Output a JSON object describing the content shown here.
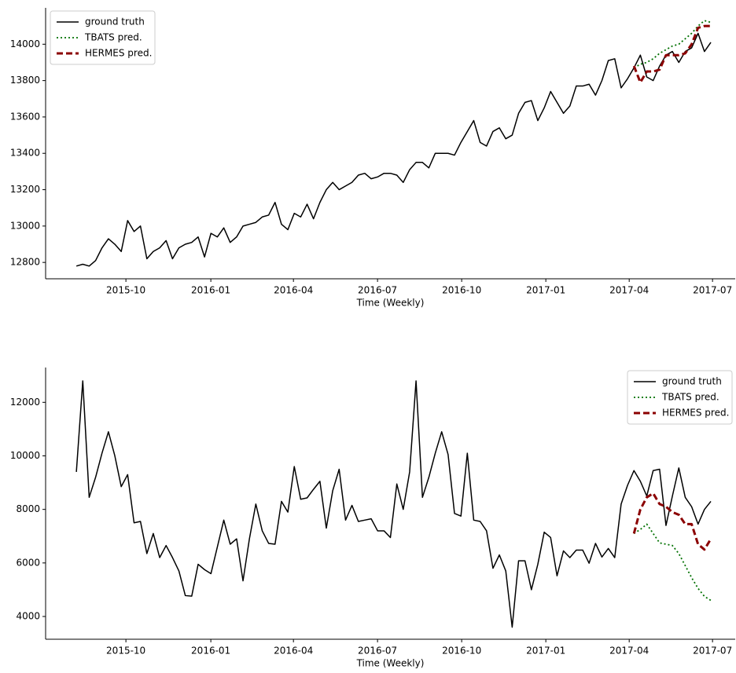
{
  "chart_data": [
    {
      "type": "line",
      "xlabel": "Time (Weekly)",
      "legend": "upper left",
      "x": [
        0,
        1,
        2,
        3,
        4,
        5,
        6,
        7,
        8,
        9,
        10,
        11,
        12,
        13,
        14,
        15,
        16,
        17,
        18,
        19,
        20,
        21,
        22,
        23,
        24,
        25,
        26,
        27,
        28,
        29,
        30,
        31,
        32,
        33,
        34,
        35,
        36,
        37,
        38,
        39,
        40,
        41,
        42,
        43,
        44,
        45,
        46,
        47,
        48,
        49,
        50,
        51,
        52,
        53,
        54,
        55,
        56,
        57,
        58,
        59,
        60,
        61,
        62,
        63,
        64,
        65,
        66,
        67,
        68,
        69,
        70,
        71,
        72,
        73,
        74,
        75,
        76,
        77,
        78,
        79,
        80,
        81,
        82,
        83,
        84,
        85,
        86,
        87,
        88,
        89,
        90,
        91,
        92,
        93,
        94,
        95,
        96,
        97,
        98,
        99
      ],
      "xlim": [
        -4.8,
        102.8
      ],
      "xticks": [
        {
          "value": 7.73,
          "label": "2015-10"
        },
        {
          "value": 20.98,
          "label": "2016-01"
        },
        {
          "value": 33.87,
          "label": "2016-04"
        },
        {
          "value": 46.99,
          "label": "2016-07"
        },
        {
          "value": 60.12,
          "label": "2016-10"
        },
        {
          "value": 73.25,
          "label": "2017-01"
        },
        {
          "value": 86.26,
          "label": "2017-04"
        },
        {
          "value": 99.26,
          "label": "2017-07"
        }
      ],
      "ylim": [
        12710,
        14200
      ],
      "yticks": [
        12800,
        13000,
        13200,
        13400,
        13600,
        13800,
        14000
      ],
      "series": [
        {
          "name": "ground truth",
          "color": "#000000",
          "style": "solid",
          "values": [
            12780,
            12790,
            12780,
            12810,
            12880,
            12930,
            12900,
            12860,
            13030,
            12970,
            13000,
            12820,
            12860,
            12880,
            12920,
            12820,
            12880,
            12900,
            12910,
            12940,
            12830,
            12960,
            12940,
            12990,
            12910,
            12940,
            13000,
            13010,
            13020,
            13050,
            13060,
            13130,
            13010,
            12980,
            13070,
            13050,
            13120,
            13040,
            13130,
            13200,
            13240,
            13200,
            13220,
            13240,
            13280,
            13290,
            13260,
            13270,
            13290,
            13290,
            13280,
            13240,
            13310,
            13350,
            13350,
            13320,
            13400,
            13400,
            13400,
            13390,
            13460,
            13520,
            13580,
            13460,
            13440,
            13520,
            13540,
            13480,
            13500,
            13620,
            13680,
            13690,
            13580,
            13650,
            13740,
            13680,
            13620,
            13660,
            13770,
            13770,
            13780,
            13720,
            13800,
            13910,
            13920,
            13760,
            13810,
            13870,
            13940,
            13820,
            13800,
            13880,
            13940,
            13960,
            13900,
            13960,
            13980,
            14060,
            13960,
            14010
          ]
        },
        {
          "name": "TBATS pred.",
          "color": "#007000",
          "style": "dotted",
          "values": [
            null,
            null,
            null,
            null,
            null,
            null,
            null,
            null,
            null,
            null,
            null,
            null,
            null,
            null,
            null,
            null,
            null,
            null,
            null,
            null,
            null,
            null,
            null,
            null,
            null,
            null,
            null,
            null,
            null,
            null,
            null,
            null,
            null,
            null,
            null,
            null,
            null,
            null,
            null,
            null,
            null,
            null,
            null,
            null,
            null,
            null,
            null,
            null,
            null,
            null,
            null,
            null,
            null,
            null,
            null,
            null,
            null,
            null,
            null,
            null,
            null,
            null,
            null,
            null,
            null,
            null,
            null,
            null,
            null,
            null,
            null,
            null,
            null,
            null,
            null,
            null,
            null,
            null,
            null,
            null,
            null,
            null,
            null,
            null,
            null,
            null,
            null,
            13870,
            13890,
            13900,
            13920,
            13950,
            13970,
            13990,
            14000,
            14030,
            14060,
            14100,
            14130,
            14120
          ]
        },
        {
          "name": "HERMES pred.",
          "color": "#8b0000",
          "style": "dashed",
          "values": [
            null,
            null,
            null,
            null,
            null,
            null,
            null,
            null,
            null,
            null,
            null,
            null,
            null,
            null,
            null,
            null,
            null,
            null,
            null,
            null,
            null,
            null,
            null,
            null,
            null,
            null,
            null,
            null,
            null,
            null,
            null,
            null,
            null,
            null,
            null,
            null,
            null,
            null,
            null,
            null,
            null,
            null,
            null,
            null,
            null,
            null,
            null,
            null,
            null,
            null,
            null,
            null,
            null,
            null,
            null,
            null,
            null,
            null,
            null,
            null,
            null,
            null,
            null,
            null,
            null,
            null,
            null,
            null,
            null,
            null,
            null,
            null,
            null,
            null,
            null,
            null,
            null,
            null,
            null,
            null,
            null,
            null,
            null,
            null,
            null,
            null,
            null,
            13880,
            13790,
            13850,
            13850,
            13860,
            13940,
            13940,
            13940,
            13950,
            14000,
            14090,
            14100,
            14100
          ]
        }
      ]
    },
    {
      "type": "line",
      "xlabel": "Time (Weekly)",
      "legend": "upper right",
      "x": [
        0,
        1,
        2,
        3,
        4,
        5,
        6,
        7,
        8,
        9,
        10,
        11,
        12,
        13,
        14,
        15,
        16,
        17,
        18,
        19,
        20,
        21,
        22,
        23,
        24,
        25,
        26,
        27,
        28,
        29,
        30,
        31,
        32,
        33,
        34,
        35,
        36,
        37,
        38,
        39,
        40,
        41,
        42,
        43,
        44,
        45,
        46,
        47,
        48,
        49,
        50,
        51,
        52,
        53,
        54,
        55,
        56,
        57,
        58,
        59,
        60,
        61,
        62,
        63,
        64,
        65,
        66,
        67,
        68,
        69,
        70,
        71,
        72,
        73,
        74,
        75,
        76,
        77,
        78,
        79,
        80,
        81,
        82,
        83,
        84,
        85,
        86,
        87,
        88,
        89,
        90,
        91,
        92,
        93,
        94,
        95,
        96,
        97,
        98,
        99
      ],
      "xlim": [
        -4.8,
        102.8
      ],
      "xticks": [
        {
          "value": 7.73,
          "label": "2015-10"
        },
        {
          "value": 20.98,
          "label": "2016-01"
        },
        {
          "value": 33.87,
          "label": "2016-04"
        },
        {
          "value": 46.99,
          "label": "2016-07"
        },
        {
          "value": 60.12,
          "label": "2016-10"
        },
        {
          "value": 73.25,
          "label": "2017-01"
        },
        {
          "value": 86.26,
          "label": "2017-04"
        },
        {
          "value": 99.26,
          "label": "2017-07"
        }
      ],
      "ylim": [
        3150,
        13300
      ],
      "yticks": [
        4000,
        6000,
        8000,
        10000,
        12000
      ],
      "series": [
        {
          "name": "ground truth",
          "color": "#000000",
          "style": "solid",
          "values": [
            9400,
            12800,
            8450,
            9200,
            10100,
            10900,
            10000,
            8850,
            9300,
            7500,
            7550,
            6350,
            7100,
            6200,
            6650,
            6200,
            5700,
            4780,
            4760,
            5950,
            5750,
            5600,
            6600,
            7600,
            6700,
            6900,
            5330,
            6900,
            8200,
            7200,
            6730,
            6700,
            8300,
            7900,
            9600,
            8380,
            8430,
            8750,
            9050,
            7300,
            8700,
            9500,
            7600,
            8150,
            7550,
            7600,
            7650,
            7200,
            7200,
            6950,
            8950,
            8000,
            9400,
            12800,
            8450,
            9200,
            10100,
            10900,
            10050,
            7850,
            7750,
            10100,
            7600,
            7550,
            7200,
            5800,
            6300,
            5700,
            3600,
            6080,
            6080,
            5000,
            5950,
            7150,
            6950,
            5520,
            6450,
            6200,
            6480,
            6480,
            5990,
            6730,
            6220,
            6540,
            6200,
            8200,
            8900,
            9450,
            9050,
            8500,
            9450,
            9500,
            7400,
            8500,
            9550,
            8450,
            8100,
            7450,
            8000,
            8300
          ]
        },
        {
          "name": "TBATS pred.",
          "color": "#007000",
          "style": "dotted",
          "values": [
            null,
            null,
            null,
            null,
            null,
            null,
            null,
            null,
            null,
            null,
            null,
            null,
            null,
            null,
            null,
            null,
            null,
            null,
            null,
            null,
            null,
            null,
            null,
            null,
            null,
            null,
            null,
            null,
            null,
            null,
            null,
            null,
            null,
            null,
            null,
            null,
            null,
            null,
            null,
            null,
            null,
            null,
            null,
            null,
            null,
            null,
            null,
            null,
            null,
            null,
            null,
            null,
            null,
            null,
            null,
            null,
            null,
            null,
            null,
            null,
            null,
            null,
            null,
            null,
            null,
            null,
            null,
            null,
            null,
            null,
            null,
            null,
            null,
            null,
            null,
            null,
            null,
            null,
            null,
            null,
            null,
            null,
            null,
            null,
            null,
            null,
            null,
            7100,
            7250,
            7450,
            7100,
            6750,
            6700,
            6650,
            6350,
            5900,
            5450,
            5050,
            4750,
            4600
          ]
        },
        {
          "name": "HERMES pred.",
          "color": "#8b0000",
          "style": "dashed",
          "values": [
            null,
            null,
            null,
            null,
            null,
            null,
            null,
            null,
            null,
            null,
            null,
            null,
            null,
            null,
            null,
            null,
            null,
            null,
            null,
            null,
            null,
            null,
            null,
            null,
            null,
            null,
            null,
            null,
            null,
            null,
            null,
            null,
            null,
            null,
            null,
            null,
            null,
            null,
            null,
            null,
            null,
            null,
            null,
            null,
            null,
            null,
            null,
            null,
            null,
            null,
            null,
            null,
            null,
            null,
            null,
            null,
            null,
            null,
            null,
            null,
            null,
            null,
            null,
            null,
            null,
            null,
            null,
            null,
            null,
            null,
            null,
            null,
            null,
            null,
            null,
            null,
            null,
            null,
            null,
            null,
            null,
            null,
            null,
            null,
            null,
            null,
            null,
            7100,
            8000,
            8450,
            8600,
            8200,
            8100,
            7900,
            7800,
            7450,
            7450,
            6700,
            6500,
            6900
          ]
        }
      ]
    }
  ]
}
